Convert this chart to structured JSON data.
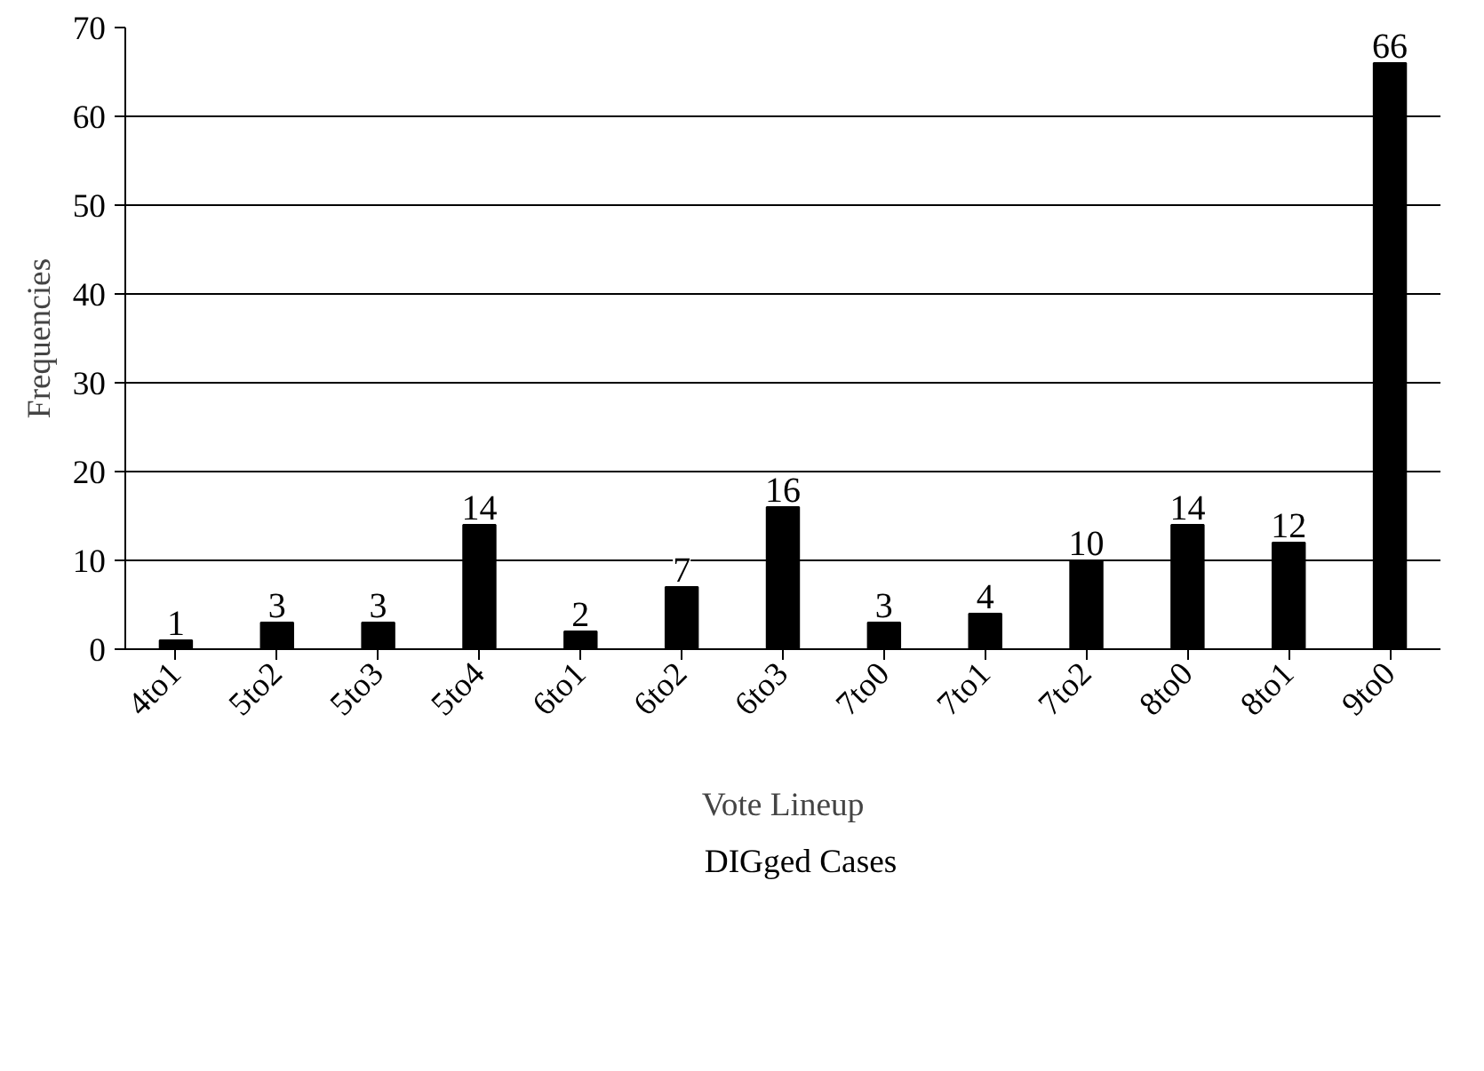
{
  "chart_data": {
    "type": "bar",
    "xlabel": "Vote Lineup",
    "ylabel": "Frequencies",
    "categories": [
      "4to1",
      "5to2",
      "5to3",
      "5to4",
      "6to1",
      "6to2",
      "6to3",
      "7to0",
      "7to1",
      "7to2",
      "8to0",
      "8to1",
      "9to0"
    ],
    "series": [
      {
        "name": "DIGged Cases",
        "color": "#000000",
        "values": [
          1,
          3,
          3,
          14,
          2,
          7,
          16,
          3,
          4,
          10,
          14,
          12,
          66
        ]
      }
    ],
    "ylim": [
      0,
      70
    ],
    "yticks": [
      0,
      10,
      20,
      30,
      40,
      50,
      60,
      70
    ],
    "grid": "y",
    "legend": "bottom",
    "data_labels": true
  }
}
